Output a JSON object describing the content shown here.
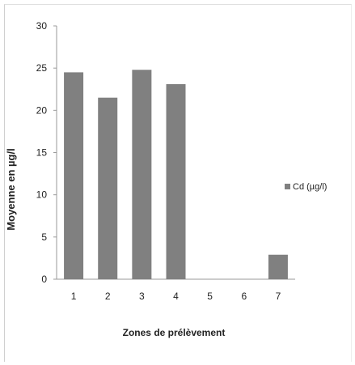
{
  "chart_data": {
    "type": "bar",
    "xlabel": "Zones de prélèvement",
    "ylabel": "Moyenne en µg/l",
    "categories": [
      "1",
      "2",
      "3",
      "4",
      "5",
      "6",
      "7"
    ],
    "series": [
      {
        "name": "Cd (µg/l)",
        "values": [
          24.5,
          21.5,
          24.8,
          23.1,
          0,
          0,
          2.9
        ]
      }
    ],
    "ylim": [
      0,
      30
    ],
    "yticks": [
      "0",
      "5",
      "10",
      "15",
      "20",
      "25",
      "30"
    ],
    "grid": false,
    "legend_position": "right",
    "colors": {
      "bar": "#808080",
      "axis": "#9a9a9a",
      "text": "#222222"
    }
  }
}
